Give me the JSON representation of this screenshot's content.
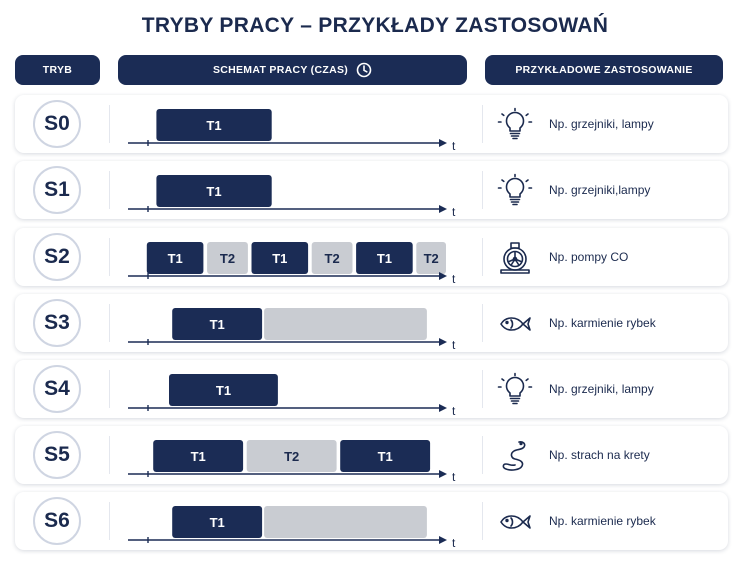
{
  "title": "TRYBY PRACY – PRZYKŁADY ZASTOSOWAŃ",
  "headers": {
    "mode": "TRYB",
    "schedule": "SCHEMAT PRACY (CZAS)",
    "application": "PRZYKŁADOWE ZASTOSOWANIE"
  },
  "colors": {
    "on": "#1b2c55",
    "off": "#c9ccd2",
    "axis": "#1b2c55"
  },
  "axis_label": "t",
  "rows": [
    {
      "mode": "S0",
      "icon": "lightbulb-icon",
      "application": "Np. grzejniki, lampy",
      "segments": [
        {
          "label": "T1",
          "state": "on",
          "from": 0.08,
          "to": 0.45
        }
      ]
    },
    {
      "mode": "S1",
      "icon": "lightbulb-icon",
      "application": "Np. grzejniki,lampy",
      "segments": [
        {
          "label": "T1",
          "state": "on",
          "from": 0.08,
          "to": 0.45
        }
      ]
    },
    {
      "mode": "S2",
      "icon": "pump-icon",
      "application": "Np. pompy CO",
      "segments": [
        {
          "label": "T1",
          "state": "on",
          "from": 0.05,
          "to": 0.235
        },
        {
          "label": "T2",
          "state": "off",
          "from": 0.24,
          "to": 0.375
        },
        {
          "label": "T1",
          "state": "on",
          "from": 0.38,
          "to": 0.565
        },
        {
          "label": "T2",
          "state": "off",
          "from": 0.57,
          "to": 0.705
        },
        {
          "label": "T1",
          "state": "on",
          "from": 0.71,
          "to": 0.895
        },
        {
          "label": "T2",
          "state": "off",
          "from": 0.9,
          "to": 1.0
        }
      ]
    },
    {
      "mode": "S3",
      "icon": "fish-icon",
      "application": "Np. karmienie rybek",
      "segments": [
        {
          "label": "T1",
          "state": "on",
          "from": 0.13,
          "to": 0.42
        },
        {
          "label": "",
          "state": "off",
          "from": 0.42,
          "to": 0.94
        }
      ]
    },
    {
      "mode": "S4",
      "icon": "lightbulb-icon",
      "application": "Np. grzejniki, lampy",
      "segments": [
        {
          "label": "T1",
          "state": "on",
          "from": 0.12,
          "to": 0.47
        }
      ]
    },
    {
      "mode": "S5",
      "icon": "snake-icon",
      "application": "Np. strach na krety",
      "segments": [
        {
          "label": "T1",
          "state": "on",
          "from": 0.07,
          "to": 0.36
        },
        {
          "label": "T2",
          "state": "off",
          "from": 0.365,
          "to": 0.655
        },
        {
          "label": "T1",
          "state": "on",
          "from": 0.66,
          "to": 0.95
        }
      ]
    },
    {
      "mode": "S6",
      "icon": "fish-icon",
      "application": "Np. karmienie rybek",
      "segments": [
        {
          "label": "T1",
          "state": "on",
          "from": 0.13,
          "to": 0.42
        },
        {
          "label": "",
          "state": "off",
          "from": 0.42,
          "to": 0.94
        }
      ]
    }
  ]
}
